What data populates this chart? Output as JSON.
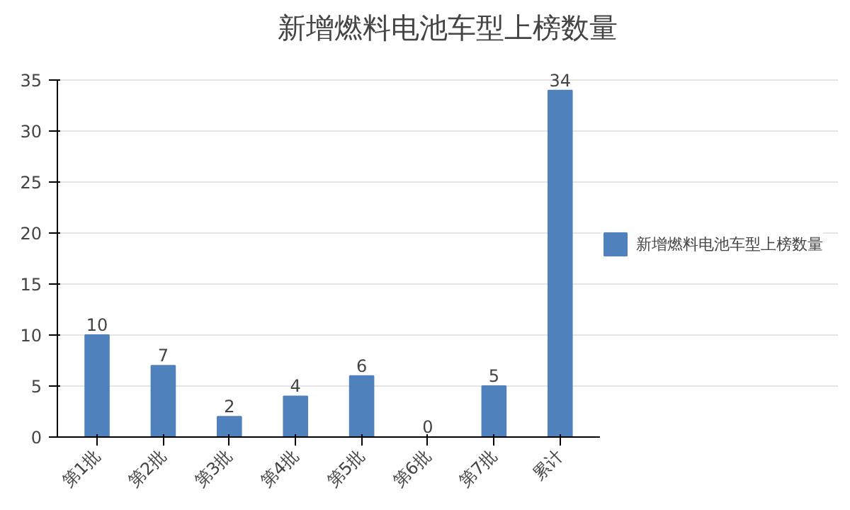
{
  "chart_data": {
    "type": "bar",
    "title": "新增燃料电池车型上榜数量",
    "categories": [
      "第1批",
      "第2批",
      "第3批",
      "第4批",
      "第5批",
      "第6批",
      "第7批",
      "累计"
    ],
    "series": [
      {
        "name": "新增燃料电池车型上榜数量",
        "color": "#4f81bd",
        "values": [
          10,
          7,
          2,
          4,
          6,
          0,
          5,
          34
        ]
      }
    ],
    "ylim": [
      0,
      35
    ],
    "yticks": [
      0,
      5,
      10,
      15,
      20,
      25,
      30,
      35
    ],
    "grid": "y",
    "legend": "right",
    "data_labels": true
  }
}
